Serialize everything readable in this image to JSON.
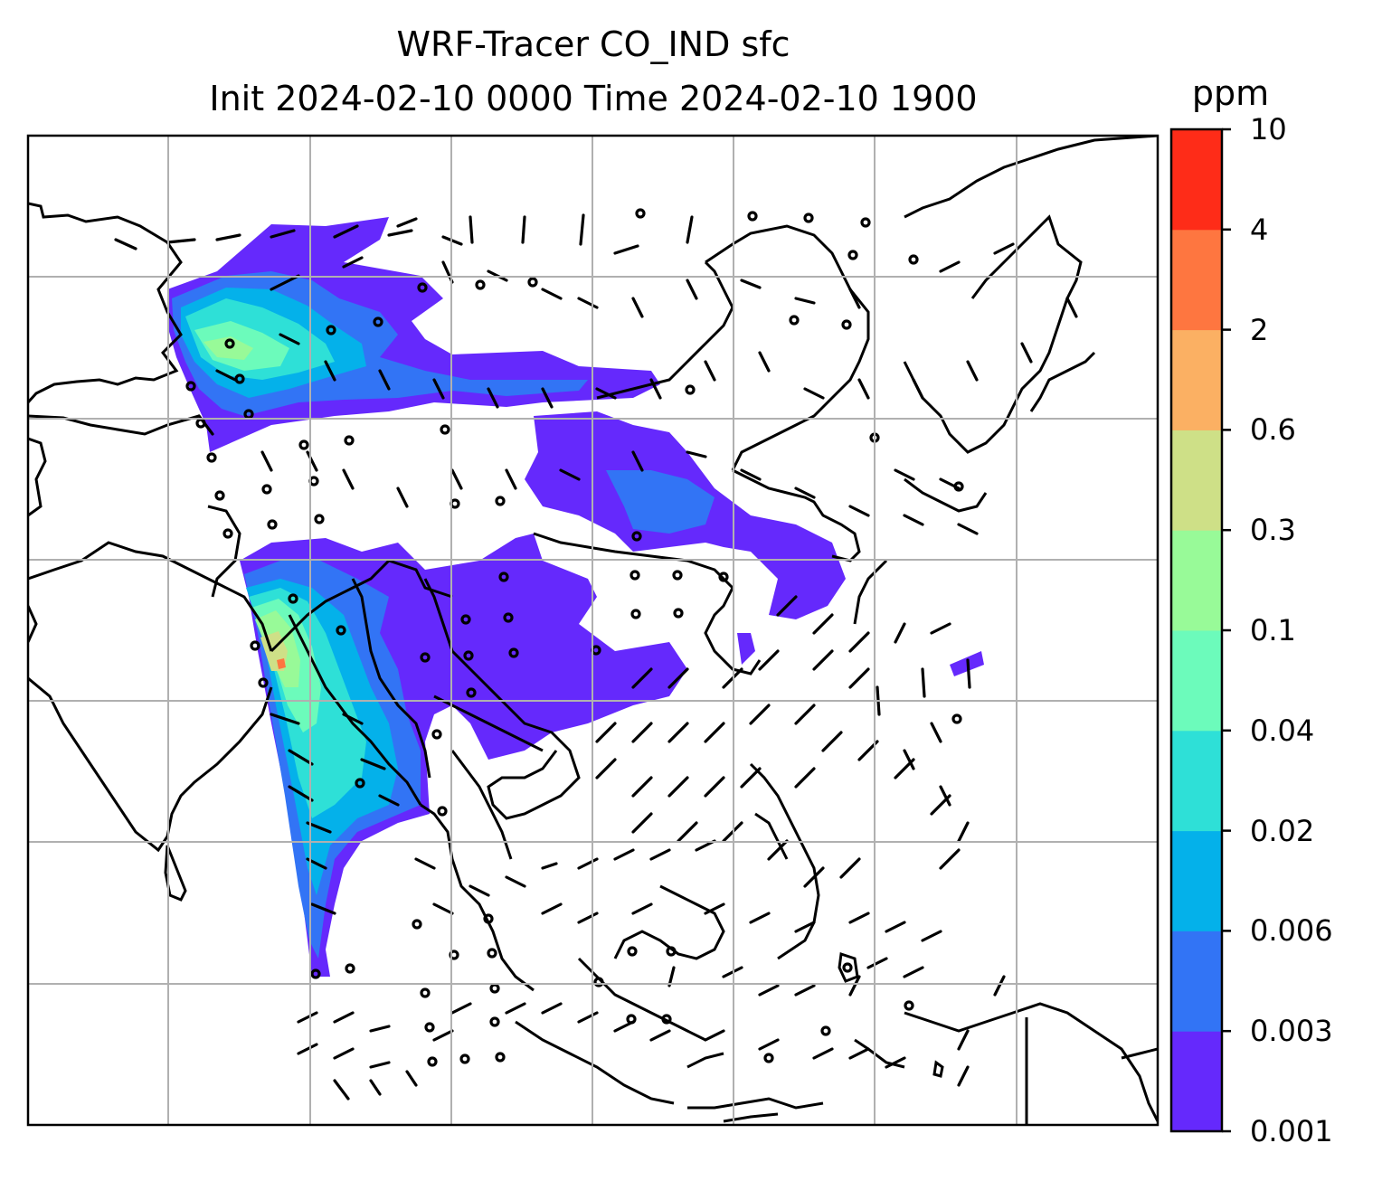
{
  "title": {
    "line1": "WRF-Tracer CO_IND sfc",
    "line2": "Init 2024-02-10 0000 Time 2024-02-10 1900"
  },
  "colorbar": {
    "unit": "ppm",
    "levels": [
      {
        "label": "0.001",
        "color": "#6529fc"
      },
      {
        "label": "0.003",
        "color": "#3274f5"
      },
      {
        "label": "0.006",
        "color": "#04b1ea"
      },
      {
        "label": "0.02",
        "color": "#2ee0d7"
      },
      {
        "label": "0.04",
        "color": "#6cfbbb"
      },
      {
        "label": "0.1",
        "color": "#98fa98"
      },
      {
        "label": "0.3",
        "color": "#cee087"
      },
      {
        "label": "0.6",
        "color": "#fbb063"
      },
      {
        "label": "2",
        "color": "#fe7640"
      },
      {
        "label": "4",
        "color": "#fe2c18"
      },
      {
        "label": "10",
        "color": null
      }
    ]
  }
}
